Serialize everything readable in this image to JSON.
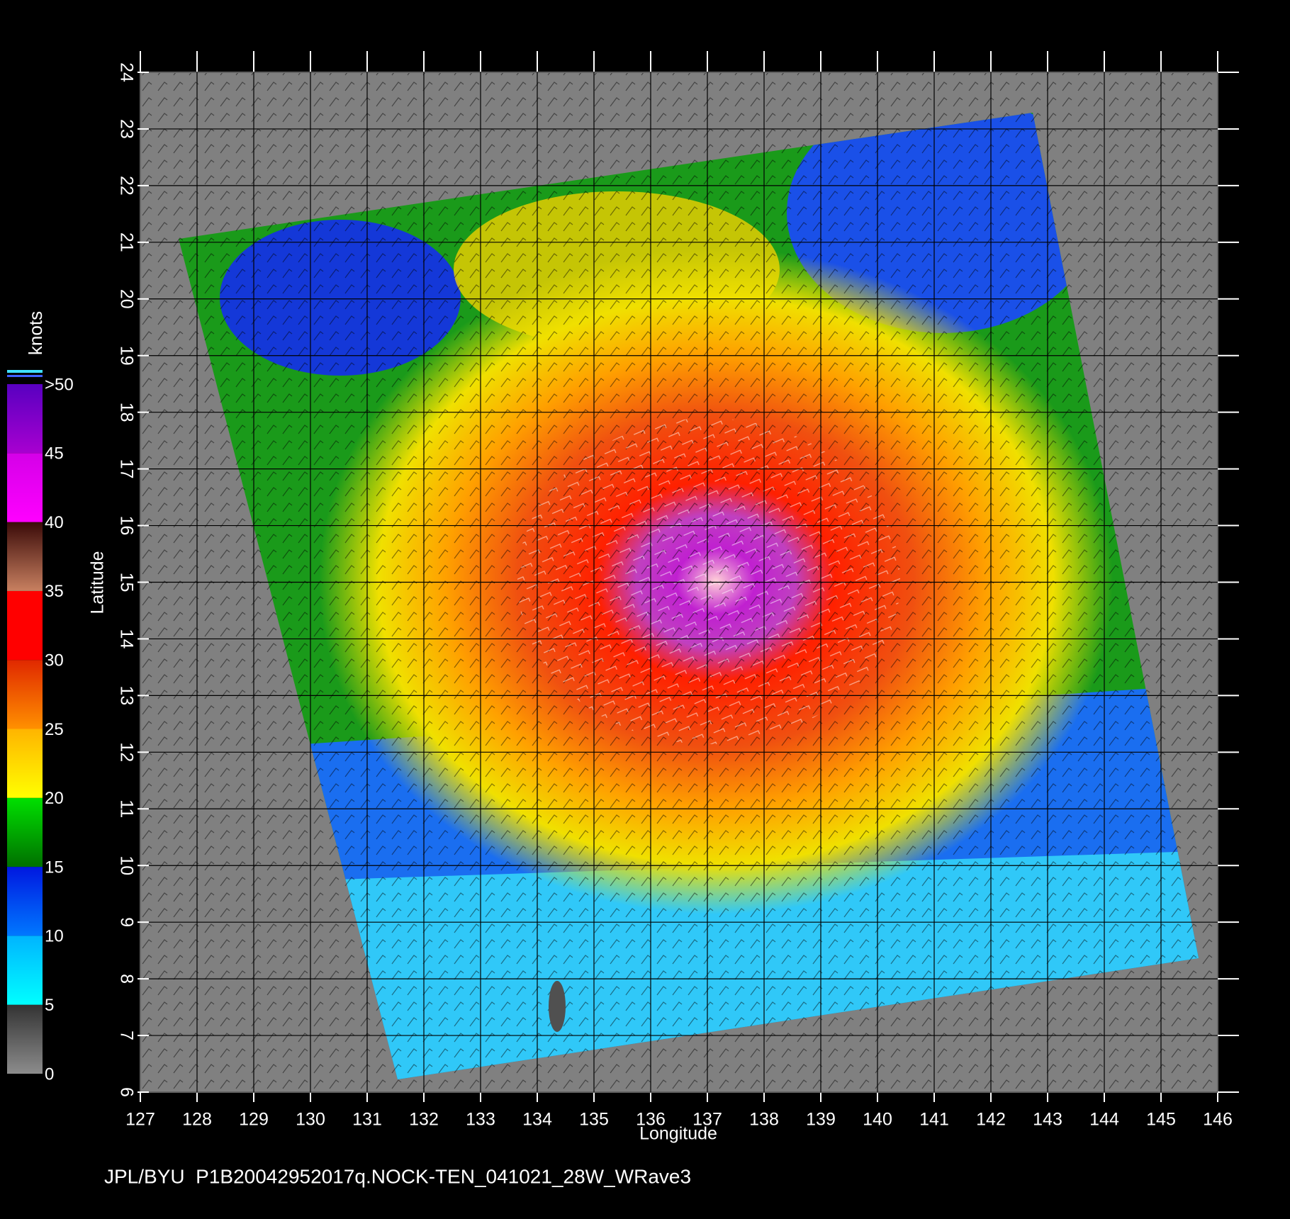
{
  "chart_data": {
    "type": "wind-map",
    "xlabel": "Longitude",
    "ylabel": "Latitude",
    "xlim": [
      127,
      146
    ],
    "ylim": [
      6,
      24
    ],
    "xticks": [
      127,
      128,
      129,
      130,
      131,
      132,
      133,
      134,
      135,
      136,
      137,
      138,
      139,
      140,
      141,
      142,
      143,
      144,
      145,
      146
    ],
    "yticks": [
      6,
      7,
      8,
      9,
      10,
      11,
      12,
      13,
      14,
      15,
      16,
      17,
      18,
      19,
      20,
      21,
      22,
      23,
      24
    ],
    "grid": true,
    "colorbar": {
      "label": "knots",
      "lim": [
        0,
        50
      ],
      "ticks": [
        0,
        5,
        10,
        15,
        20,
        25,
        30,
        35,
        40,
        45,
        {
          "value": 50,
          "label": ">50"
        }
      ],
      "colors": [
        [
          "#8c8c8c",
          "#333333"
        ],
        [
          "#00ffff",
          "#00b4ff"
        ],
        [
          "#0078ff",
          "#0018e0"
        ],
        [
          "#007000",
          "#00e000"
        ],
        [
          "#ffff00",
          "#ffb400"
        ],
        [
          "#ff9000",
          "#e02800"
        ],
        [
          "#ff0000",
          "#ff0000"
        ],
        [
          "#c88060",
          "#3a0a08"
        ],
        [
          "#ff00ff",
          "#d400e8"
        ],
        [
          "#a800d0",
          "#5800c0"
        ]
      ]
    },
    "footer": "JPL/BYU  P1B20042952017q.NOCK-TEN_041021_28W_WRave3"
  }
}
